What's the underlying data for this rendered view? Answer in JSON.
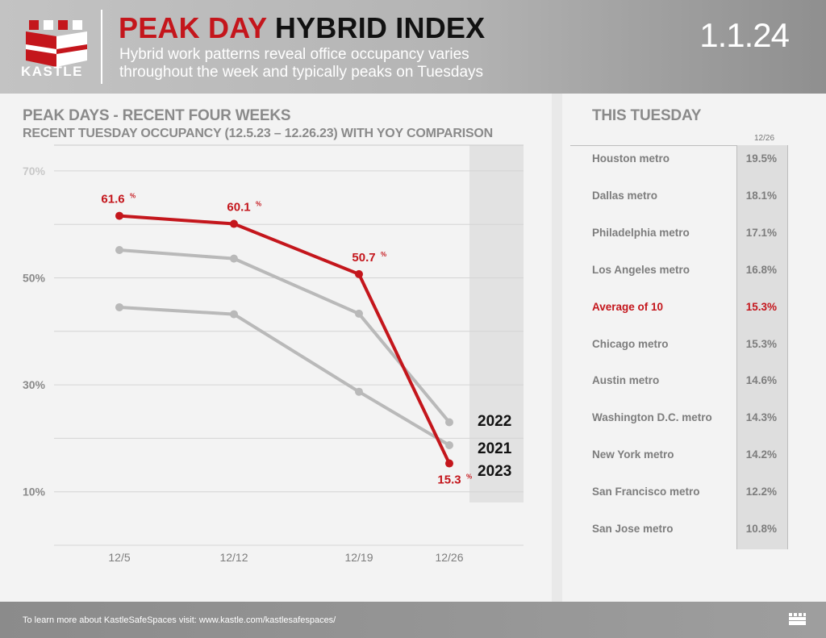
{
  "header": {
    "logo_text": "KASTLE",
    "title_red": "PEAK DAY",
    "title_black": "HYBRID INDEX",
    "subtitle_line1": "Hybrid work patterns reveal office occupancy varies",
    "subtitle_line2": "throughout the week and typically peaks on Tuesdays",
    "date": "1.1.24"
  },
  "chart": {
    "title": "PEAK DAYS - RECENT FOUR WEEKS",
    "subtitle": "RECENT TUESDAY OCCUPANCY (12.5.23 – 12.26.23) WITH YOY COMPARISON"
  },
  "chart_data": {
    "type": "line",
    "title": "PEAK DAYS - RECENT FOUR WEEKS",
    "subtitle": "RECENT TUESDAY OCCUPANCY (12.5.23 – 12.26.23) WITH YOY COMPARISON",
    "categories": [
      "12/5",
      "12/12",
      "12/19",
      "12/26"
    ],
    "y_ticks": [
      "70%",
      "50%",
      "30%",
      "10%"
    ],
    "ylim": [
      0,
      75
    ],
    "series": [
      {
        "name": "2023",
        "values": [
          61.6,
          60.1,
          50.7,
          15.3
        ],
        "labels": [
          "61.6",
          "60.1",
          "50.7",
          "15.3"
        ],
        "color": "#c4161c"
      },
      {
        "name": "2022",
        "values": [
          55.2,
          53.6,
          43.3,
          23.0
        ],
        "color": "#b9b9b9"
      },
      {
        "name": "2021",
        "values": [
          44.5,
          43.2,
          28.7,
          18.7
        ],
        "color": "#b9b9b9"
      }
    ],
    "percent_suffix": "%"
  },
  "table": {
    "title": "THIS TUESDAY",
    "column_header": "12/26",
    "rows": [
      {
        "name": "Houston metro",
        "value": "19.5%"
      },
      {
        "name": "Dallas metro",
        "value": "18.1%"
      },
      {
        "name": "Philadelphia metro",
        "value": "17.1%"
      },
      {
        "name": "Los Angeles metro",
        "value": "16.8%"
      },
      {
        "name": "Average of 10",
        "value": "15.3%",
        "highlight": true
      },
      {
        "name": "Chicago metro",
        "value": "15.3%"
      },
      {
        "name": "Austin metro",
        "value": "14.6%"
      },
      {
        "name": "Washington D.C. metro",
        "value": "14.3%"
      },
      {
        "name": "New York metro",
        "value": "14.2%"
      },
      {
        "name": "San Francisco metro",
        "value": "12.2%"
      },
      {
        "name": "San Jose metro",
        "value": "10.8%"
      }
    ]
  },
  "footer": {
    "text": "To learn more about KastleSafeSpaces visit: www.kastle.com/kastlesafespaces/"
  },
  "colors": {
    "brand_red": "#c4161c",
    "gray_line": "#b9b9b9"
  }
}
